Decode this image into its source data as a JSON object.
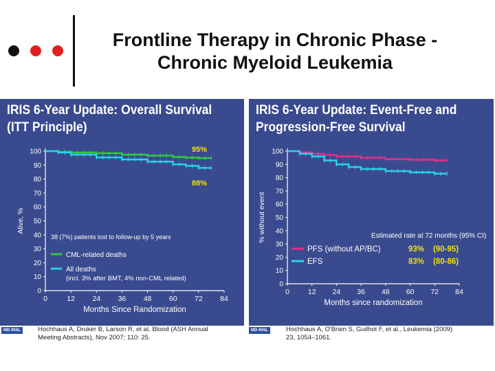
{
  "slide": {
    "title_line1": "Frontline Therapy in Chronic Phase -",
    "title_line2": "Chronic Myeloid Leukemia",
    "dot_colors": [
      "#111111",
      "#e02020",
      "#e02020"
    ],
    "logo_text": "MD·INSL"
  },
  "left_panel": {
    "title_line1": "IRIS 6-Year Update: Overall Survival",
    "title_line2": "(ITT Principle)",
    "reference_line1": "Hochhaus A, Druker B, Larson R, et al. Blood (ASH Annual",
    "reference_line2": "Meeting Abstracts), Nov 2007; 110: 25."
  },
  "right_panel": {
    "title_line1": "IRIS 6-Year Update: Event-Free and",
    "title_line2": "Progression-Free Survival",
    "reference_line1": "Hochhaus A, O'Brien S, Guilhot F, et al., Leukemia (2009)",
    "reference_line2": "23, 1054–1061."
  },
  "chart_data": [
    {
      "type": "line",
      "title": "IRIS 6-Year Update: Overall Survival (ITT Principle)",
      "xlabel": "Months Since Randomization",
      "ylabel": "Alive, %",
      "xlim": [
        0,
        84
      ],
      "ylim": [
        0,
        100
      ],
      "xticks": [
        0,
        12,
        24,
        36,
        48,
        60,
        72,
        84
      ],
      "yticks": [
        0,
        10,
        20,
        30,
        40,
        50,
        60,
        70,
        80,
        90,
        100
      ],
      "series": [
        {
          "name": "CML-related deaths",
          "color": "#2ecc40",
          "x": [
            0,
            6,
            12,
            24,
            36,
            48,
            60,
            66,
            72,
            78
          ],
          "y": [
            100,
            99.5,
            99,
            98.5,
            97.5,
            96.8,
            95.8,
            95.3,
            95,
            95
          ]
        },
        {
          "name": "All deaths",
          "color": "#29d3e8",
          "x": [
            0,
            6,
            12,
            24,
            36,
            48,
            60,
            66,
            72,
            78
          ],
          "y": [
            100,
            99,
            97.5,
            95.5,
            94,
            92.5,
            90.5,
            89.5,
            88,
            88
          ]
        }
      ],
      "annotations": {
        "green_value": "95%",
        "cyan_value": "88%",
        "lost_note": "38 (7%) patients lost to follow-up by 5 years"
      },
      "legend": {
        "item1": "CML-related deaths",
        "item2_line1": "All deaths",
        "item2_line2": "(incl. 3% after BMT, 4% non-CML related)"
      }
    },
    {
      "type": "line",
      "title": "IRIS 6-Year Update: Event-Free and Progression-Free Survival",
      "xlabel": "Months since randomization",
      "ylabel": "% without event",
      "xlim": [
        0,
        84
      ],
      "ylim": [
        0,
        100
      ],
      "xticks": [
        0,
        12,
        24,
        36,
        48,
        60,
        72,
        84
      ],
      "yticks": [
        0,
        10,
        20,
        30,
        40,
        50,
        60,
        70,
        80,
        90,
        100
      ],
      "series": [
        {
          "name": "PFS (without AP/BC)",
          "color": "#e0308a",
          "x": [
            0,
            6,
            12,
            18,
            24,
            36,
            48,
            60,
            72,
            78
          ],
          "y": [
            100,
            99,
            98,
            97,
            96,
            95,
            94,
            93.5,
            93,
            93
          ]
        },
        {
          "name": "EFS",
          "color": "#29d3e8",
          "x": [
            0,
            6,
            12,
            18,
            24,
            30,
            36,
            48,
            60,
            72,
            78
          ],
          "y": [
            100,
            98,
            96,
            93,
            90,
            88,
            86.5,
            85,
            84,
            83,
            83
          ]
        }
      ],
      "annotations": {
        "estimate_note": "Estimated rate at 72 months (95% CI)"
      },
      "legend": [
        {
          "label": "PFS (without AP/BC)",
          "rate": "93%",
          "ci": "(90-95)",
          "color": "#e0308a"
        },
        {
          "label": "EFS",
          "rate": "83%",
          "ci": "(80-86)",
          "color": "#29d3e8"
        }
      ]
    }
  ]
}
